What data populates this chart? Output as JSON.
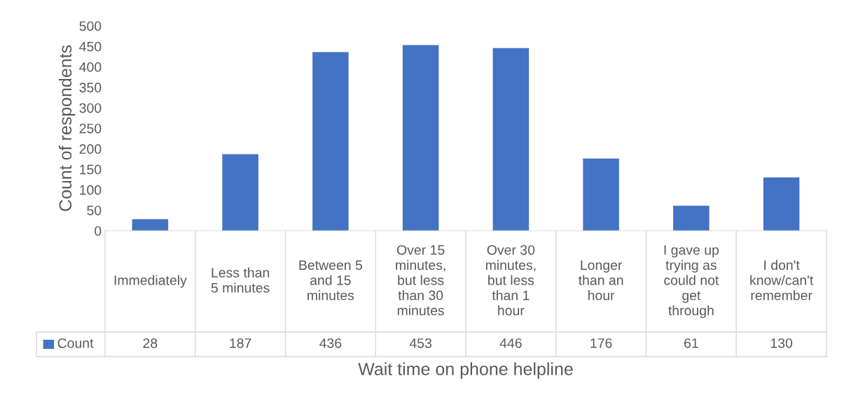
{
  "chart_data": {
    "type": "bar",
    "xlabel": "Wait time on phone helpline",
    "ylabel": "Count of respondents",
    "categories": [
      "Immediately",
      "Less than\n5 minutes",
      "Between 5\nand 15\nminutes",
      "Over 15\nminutes,\nbut less\nthan 30\nminutes",
      "Over 30\nminutes,\nbut less\nthan 1\nhour",
      "Longer\nthan an\nhour",
      "I gave up\ntrying as\ncould not\nget\nthrough",
      "I don't\nknow/can't\nremember"
    ],
    "series": [
      {
        "name": "Count",
        "color": "#4472c4",
        "values": [
          28,
          187,
          436,
          453,
          446,
          176,
          61,
          130
        ]
      }
    ],
    "ylim": [
      0,
      500
    ],
    "yticks": [
      0,
      50,
      100,
      150,
      200,
      250,
      300,
      350,
      400,
      450,
      500
    ],
    "data_labels": true,
    "grid": false,
    "legend": "bottom"
  }
}
